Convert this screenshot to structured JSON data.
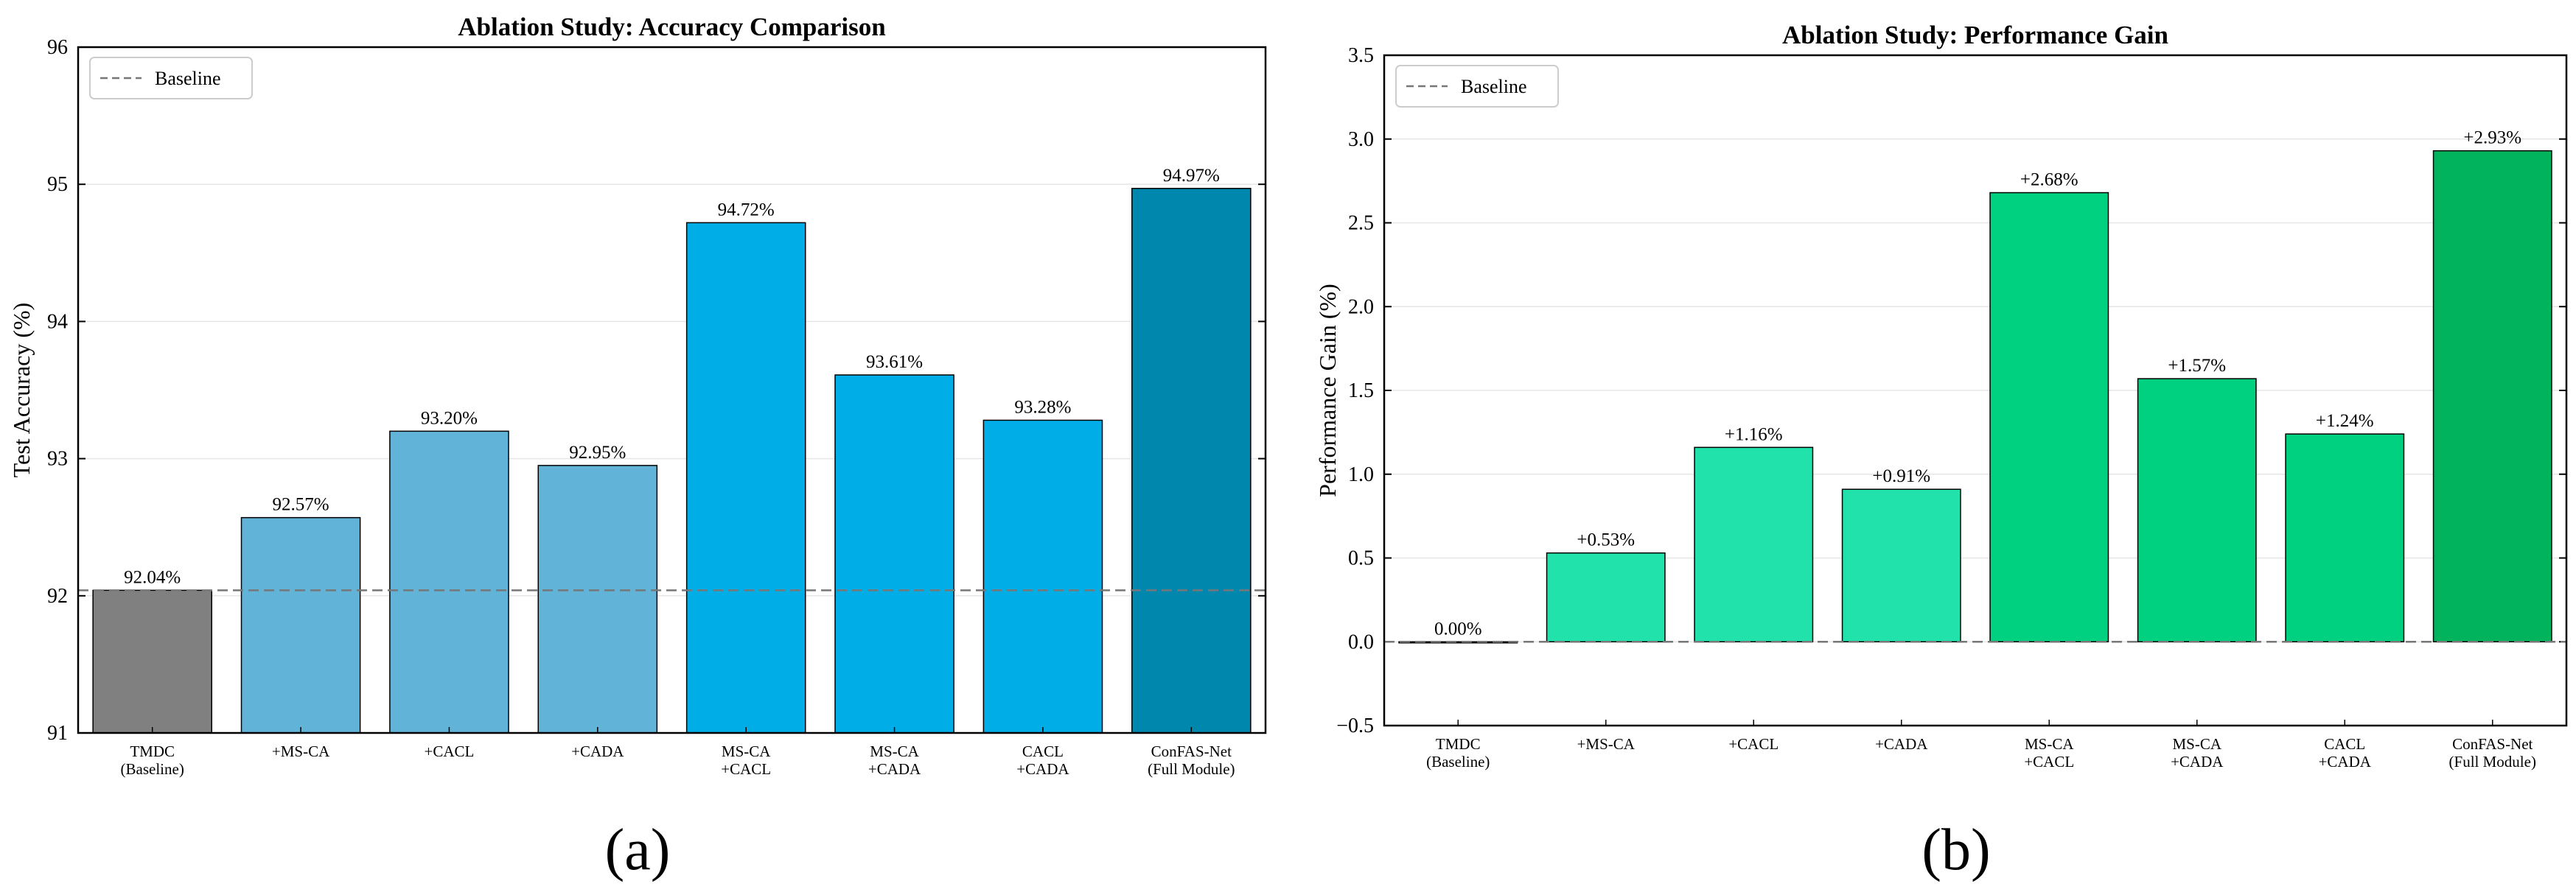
{
  "panels": [
    {
      "letter": "(a)",
      "chart_data": {
        "type": "bar",
        "title": "Ablation Study: Accuracy Comparison",
        "xlabel": "",
        "ylabel": "Test Accuracy (%)",
        "ylim": [
          91,
          96
        ],
        "yticks": [
          "91",
          "92",
          "93",
          "94",
          "95",
          "96"
        ],
        "categories": [
          [
            "TMDC",
            "(Baseline)"
          ],
          [
            "+MS-CA"
          ],
          [
            "+CACL"
          ],
          [
            "+CADA"
          ],
          [
            "MS-CA",
            "+CACL"
          ],
          [
            "MS-CA",
            "+CADA"
          ],
          [
            "CACL",
            "+CADA"
          ],
          [
            "ConFAS-Net",
            "(Full Module)"
          ]
        ],
        "values": [
          92.04,
          92.57,
          93.2,
          92.95,
          94.72,
          93.61,
          93.28,
          94.97
        ],
        "value_labels": [
          "92.04%",
          "92.57%",
          "93.20%",
          "92.95%",
          "94.72%",
          "93.61%",
          "93.28%",
          "94.97%"
        ],
        "bar_colors": [
          "#808080",
          "#62b3d8",
          "#62b3d8",
          "#62b3d8",
          "#00ade6",
          "#00ade6",
          "#00ade6",
          "#0087ae"
        ],
        "baseline": {
          "value": 92.04,
          "label": "Baseline"
        },
        "legend_position": "top-left",
        "grid": "horizontal"
      }
    },
    {
      "letter": "(b)",
      "chart_data": {
        "type": "bar",
        "title": "Ablation Study: Performance Gain",
        "xlabel": "",
        "ylabel": "Performance Gain (%)",
        "ylim": [
          -0.5,
          3.5
        ],
        "yticks": [
          "−0.5",
          "0.0",
          "0.5",
          "1.0",
          "1.5",
          "2.0",
          "2.5",
          "3.0",
          "3.5"
        ],
        "categories": [
          [
            "TMDC",
            "(Baseline)"
          ],
          [
            "+MS-CA"
          ],
          [
            "+CACL"
          ],
          [
            "+CADA"
          ],
          [
            "MS-CA",
            "+CACL"
          ],
          [
            "MS-CA",
            "+CADA"
          ],
          [
            "CACL",
            "+CADA"
          ],
          [
            "ConFAS-Net",
            "(Full Module)"
          ]
        ],
        "values": [
          0.0,
          0.53,
          1.16,
          0.91,
          2.68,
          1.57,
          1.24,
          2.93
        ],
        "value_labels": [
          "0.00%",
          "+0.53%",
          "+1.16%",
          "+0.91%",
          "+2.68%",
          "+1.57%",
          "+1.24%",
          "+2.93%"
        ],
        "bar_colors": [
          "#aaaaaa",
          "#22e2ac",
          "#22e2ac",
          "#22e2ac",
          "#00d181",
          "#00d181",
          "#00d181",
          "#00b35c"
        ],
        "baseline": {
          "value": 0.0,
          "label": "Baseline"
        },
        "legend_position": "top-left",
        "grid": "horizontal"
      }
    }
  ]
}
